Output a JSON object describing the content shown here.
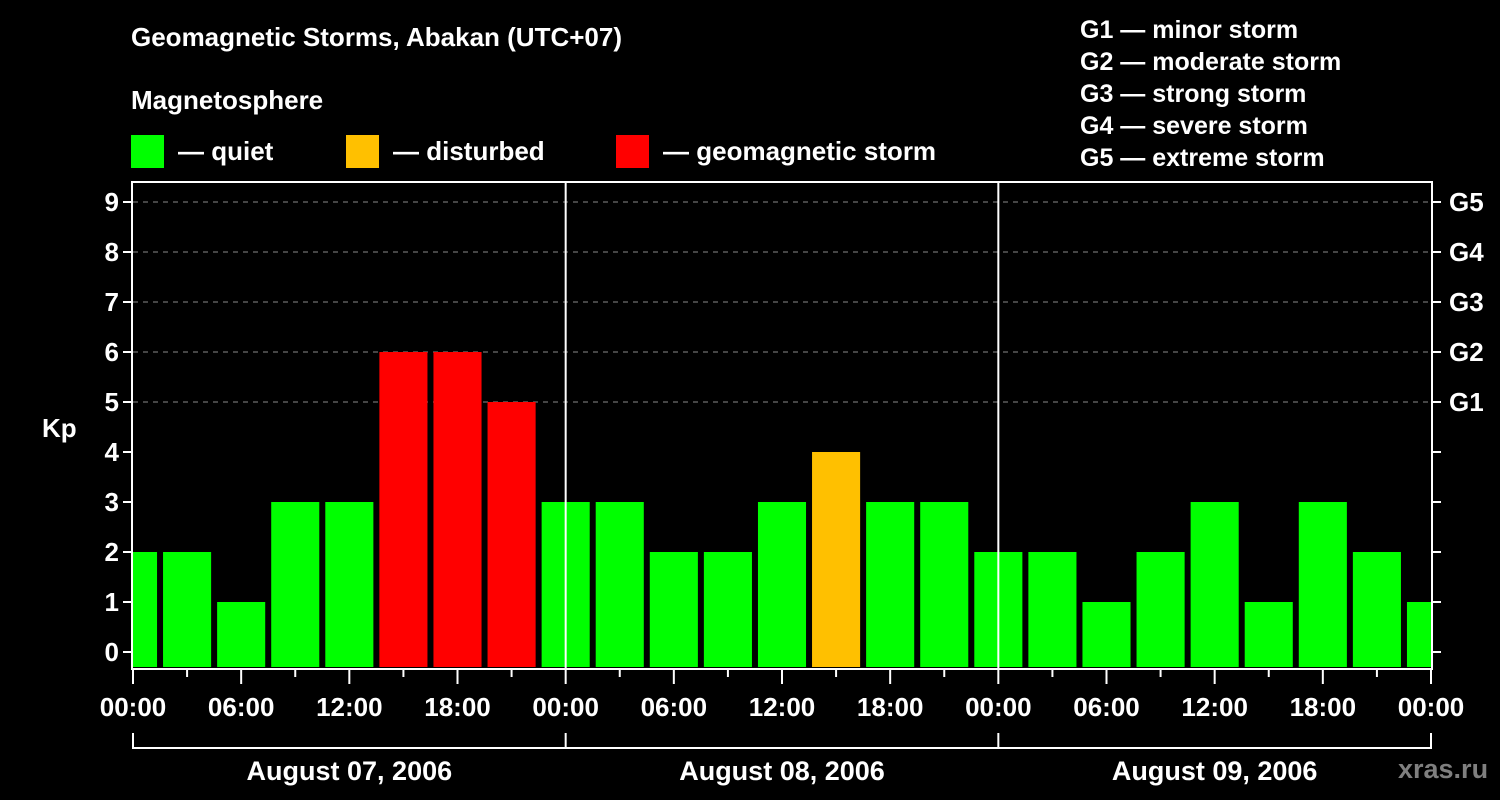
{
  "title": "Geomagnetic Storms, Abakan (UTC+07)",
  "subtitle": "Magnetosphere",
  "legend": [
    {
      "label": "— quiet",
      "color": "#00ff00"
    },
    {
      "label": "— disturbed",
      "color": "#ffc000"
    },
    {
      "label": "— geomagnetic storm",
      "color": "#ff0000"
    }
  ],
  "storm_scale": [
    "G1 — minor storm",
    "G2 — moderate storm",
    "G3 — strong storm",
    "G4 — severe storm",
    "G5 — extreme storm"
  ],
  "watermark": "xras.ru",
  "chart_data": {
    "type": "bar",
    "title": "Geomagnetic Storms, Abakan (UTC+07)",
    "ylabel": "Kp",
    "xlabel": "",
    "ylim": [
      0,
      9
    ],
    "yticks": [
      0,
      1,
      2,
      3,
      4,
      5,
      6,
      7,
      8,
      9
    ],
    "right_axis_labels": [
      {
        "kp": 5,
        "label": "G1"
      },
      {
        "kp": 6,
        "label": "G2"
      },
      {
        "kp": 7,
        "label": "G3"
      },
      {
        "kp": 8,
        "label": "G4"
      },
      {
        "kp": 9,
        "label": "G5"
      }
    ],
    "grid": "dashed horizontal lines at Kp 5–9",
    "xtick_labels": [
      "00:00",
      "06:00",
      "12:00",
      "18:00",
      "00:00",
      "06:00",
      "12:00",
      "18:00",
      "00:00",
      "06:00",
      "12:00",
      "18:00",
      "00:00"
    ],
    "days": [
      "August 07, 2006",
      "August 08, 2006",
      "August 09, 2006"
    ],
    "bar_interval_hours": 3,
    "bar_start_offset_hours": -1.5,
    "values": [
      2,
      2,
      1,
      3,
      3,
      6,
      6,
      5,
      3,
      3,
      2,
      2,
      3,
      4,
      3,
      3,
      2,
      2,
      1,
      2,
      3,
      1,
      3,
      2,
      1
    ],
    "colors": {
      "quiet": "#00ff00",
      "disturbed": "#ffc000",
      "storm": "#ff0000"
    },
    "color_rule": "Kp<4 quiet, Kp=4 disturbed, Kp>=5 storm"
  }
}
